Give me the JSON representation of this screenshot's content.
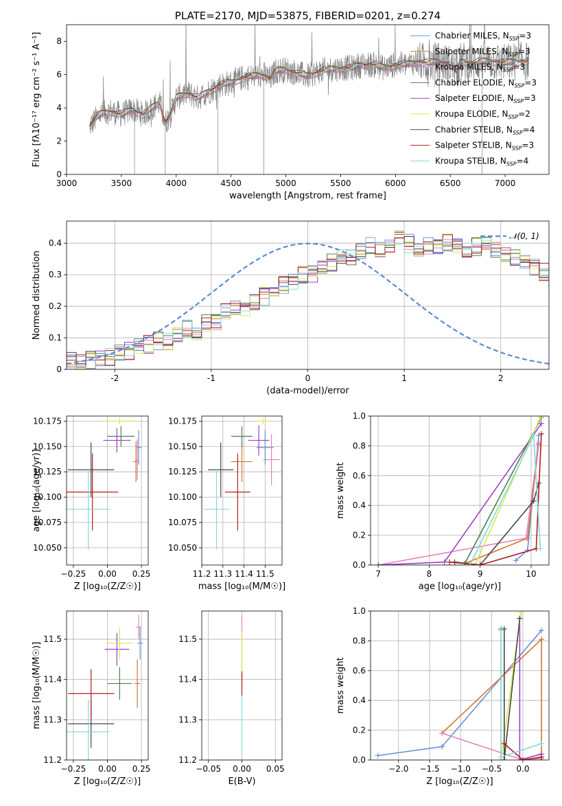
{
  "colors": {
    "chabrier_miles": "#6a8fd6",
    "salpeter_miles": "#d4752a",
    "kroupa_miles": "#e382c0",
    "chabrier_elodie": "#4e7e4e",
    "salpeter_elodie": "#9e3fc2",
    "kroupa_elodie": "#d6e84c",
    "chabrier_stelib": "#444444",
    "salpeter_stelib": "#b01c1c",
    "kroupa_stelib": "#82d8dc",
    "spectrum_data": "#808080",
    "normal_curve": "#5b8ad0"
  },
  "chart_data": [
    {
      "id": "spectrum",
      "type": "line",
      "title": "PLATE=2170, MJD=53875, FIBERID=0201, z=0.274",
      "xlabel": "wavelength [Angstrom, rest frame]",
      "ylabel": "Flux [fλ10⁻¹⁷ erg cm⁻² s⁻¹ A⁻¹]",
      "xlim": [
        3000,
        7400
      ],
      "ylim": [
        0,
        9
      ],
      "xticks": [
        3000,
        3500,
        4000,
        4500,
        5000,
        5500,
        6000,
        6500,
        7000
      ],
      "yticks": [
        0,
        2,
        4,
        6,
        8
      ],
      "legend_position": "top-right",
      "legend": [
        {
          "name": "Chabrier MILES, N_SSP=3",
          "label": "Chabrier MILES, N",
          "sub": "SSP",
          "suffix": "=3",
          "color_key": "chabrier_miles"
        },
        {
          "name": "Salpeter MILES, N_SSP=3",
          "label": "Salpeter MILES, N",
          "sub": "SSP",
          "suffix": "=3",
          "color_key": "salpeter_miles"
        },
        {
          "name": "Kroupa MILES, N_SSP=3",
          "label": "Kroupa MILES, N",
          "sub": "SSP",
          "suffix": "=3",
          "color_key": "kroupa_miles"
        },
        {
          "name": "Chabrier ELODIE, N_SSP=3",
          "label": "Chabrier ELODIE, N",
          "sub": "SSP",
          "suffix": "=3",
          "color_key": "chabrier_elodie"
        },
        {
          "name": "Salpeter ELODIE, N_SSP=3",
          "label": "Salpeter ELODIE, N",
          "sub": "SSP",
          "suffix": "=3",
          "color_key": "salpeter_elodie"
        },
        {
          "name": "Kroupa ELODIE, N_SSP=2",
          "label": "Kroupa ELODIE, N",
          "sub": "SSP",
          "suffix": "=2",
          "color_key": "kroupa_elodie"
        },
        {
          "name": "Chabrier STELIB, N_SSP=4",
          "label": "Chabrier STELIB, N",
          "sub": "SSP",
          "suffix": "=4",
          "color_key": "chabrier_stelib"
        },
        {
          "name": "Salpeter STELIB, N_SSP=3",
          "label": "Salpeter STELIB, N",
          "sub": "SSP",
          "suffix": "=3",
          "color_key": "salpeter_stelib"
        },
        {
          "name": "Kroupa STELIB, N_SSP=4",
          "label": "Kroupa STELIB, N",
          "sub": "SSP",
          "suffix": "=4",
          "color_key": "kroupa_stelib"
        }
      ],
      "continuum": [
        [
          3210,
          2.9
        ],
        [
          3300,
          3.6
        ],
        [
          3400,
          3.8
        ],
        [
          3500,
          3.6
        ],
        [
          3600,
          3.9
        ],
        [
          3700,
          3.6
        ],
        [
          3800,
          4.1
        ],
        [
          3850,
          4.3
        ],
        [
          3900,
          3.1
        ],
        [
          3950,
          3.6
        ],
        [
          4000,
          4.6
        ],
        [
          4100,
          4.9
        ],
        [
          4200,
          4.6
        ],
        [
          4300,
          5.0
        ],
        [
          4400,
          5.4
        ],
        [
          4500,
          5.5
        ],
        [
          4600,
          5.8
        ],
        [
          4700,
          5.9
        ],
        [
          4800,
          6.0
        ],
        [
          4860,
          5.7
        ],
        [
          4900,
          6.2
        ],
        [
          5000,
          6.3
        ],
        [
          5100,
          6.1
        ],
        [
          5200,
          5.9
        ],
        [
          5300,
          6.2
        ],
        [
          5400,
          6.3
        ],
        [
          5500,
          6.4
        ],
        [
          5600,
          6.4
        ],
        [
          5700,
          6.6
        ],
        [
          5800,
          6.6
        ],
        [
          5900,
          6.4
        ],
        [
          6000,
          6.6
        ],
        [
          6100,
          6.6
        ],
        [
          6200,
          6.8
        ],
        [
          6300,
          6.7
        ],
        [
          6400,
          6.8
        ],
        [
          6500,
          6.6
        ],
        [
          6560,
          6.2
        ],
        [
          6600,
          6.8
        ],
        [
          6700,
          6.7
        ],
        [
          6800,
          6.8
        ],
        [
          6900,
          6.8
        ],
        [
          7000,
          6.7
        ],
        [
          7100,
          6.8
        ],
        [
          7220,
          6.8
        ]
      ]
    },
    {
      "id": "residuals",
      "type": "histogram",
      "xlabel": "(data-model)/error",
      "ylabel": "Normed distribution",
      "xlim": [
        -2.5,
        2.5
      ],
      "ylim": [
        0,
        0.47
      ],
      "xticks": [
        -2,
        -1,
        0,
        1,
        2
      ],
      "yticks": [
        0.0,
        0.1,
        0.2,
        0.3,
        0.4
      ],
      "legend_position": "top-right",
      "curve_legend": "𝒩(0, 1)",
      "bin_width": 0.1,
      "bin_start": -2.5,
      "hist_values": [
        0.03,
        0.02,
        0.03,
        0.04,
        0.04,
        0.05,
        0.06,
        0.07,
        0.08,
        0.09,
        0.09,
        0.11,
        0.13,
        0.12,
        0.15,
        0.15,
        0.18,
        0.2,
        0.19,
        0.21,
        0.23,
        0.25,
        0.27,
        0.28,
        0.3,
        0.3,
        0.32,
        0.34,
        0.35,
        0.35,
        0.38,
        0.39,
        0.38,
        0.4,
        0.41,
        0.4,
        0.38,
        0.39,
        0.39,
        0.4,
        0.39,
        0.38,
        0.39,
        0.4,
        0.38,
        0.36,
        0.35,
        0.34,
        0.32,
        0.31,
        0.28,
        0.27,
        0.24,
        0.22,
        0.22,
        0.2,
        0.18,
        0.16,
        0.15,
        0.13,
        0.12,
        0.1,
        0.09,
        0.08,
        0.07,
        0.06,
        0.06,
        0.05,
        0.04,
        0.04
      ]
    },
    {
      "id": "z-vs-age",
      "type": "errorbar",
      "xlabel": "Z [log₁₀(Z/Z☉)]",
      "ylabel": "age  [log₁₀(age/yr)]",
      "xlim": [
        -0.3,
        0.3
      ],
      "ylim": [
        10.033,
        10.18
      ],
      "xticks": [
        -0.25,
        0.0,
        0.25
      ],
      "xticklabels": [
        "−0.25",
        "0.00",
        "0.25"
      ],
      "yticks": [
        10.05,
        10.075,
        10.1,
        10.125,
        10.15,
        10.175
      ],
      "yticklabels": [
        "10.050",
        "10.075",
        "10.100",
        "10.125",
        "10.150",
        "10.175"
      ],
      "points": [
        {
          "k": "chabrier_miles",
          "x": 0.23,
          "xe": 0.02,
          "y": 10.149,
          "ye": 0.017
        },
        {
          "k": "salpeter_miles",
          "x": 0.21,
          "xe": 0.02,
          "y": 10.135,
          "ye": 0.02
        },
        {
          "k": "kroupa_miles",
          "x": 0.22,
          "xe": 0.015,
          "y": 10.137,
          "ye": 0.02
        },
        {
          "k": "chabrier_elodie",
          "x": 0.1,
          "xe": 0.1,
          "y": 10.16,
          "ye": 0.01
        },
        {
          "k": "salpeter_elodie",
          "x": 0.07,
          "xe": 0.1,
          "y": 10.156,
          "ye": 0.012
        },
        {
          "k": "kroupa_elodie",
          "x": 0.09,
          "xe": 0.12,
          "y": 10.175,
          "ye": 0.003
        },
        {
          "k": "chabrier_stelib",
          "x": -0.12,
          "xe": 0.17,
          "y": 10.127,
          "ye": 0.027
        },
        {
          "k": "salpeter_stelib",
          "x": -0.11,
          "xe": 0.19,
          "y": 10.105,
          "ye": 0.038
        },
        {
          "k": "kroupa_stelib",
          "x": -0.14,
          "xe": 0.16,
          "y": 10.088,
          "ye": 0.04
        }
      ]
    },
    {
      "id": "mass-vs-age",
      "type": "errorbar",
      "xlabel": "mass [log₁₀(M/M☉)]",
      "ylabel": "",
      "xlim": [
        11.2,
        11.58
      ],
      "ylim": [
        10.033,
        10.18
      ],
      "xticks": [
        11.2,
        11.3,
        11.4,
        11.5
      ],
      "xticklabels": [
        "11.2",
        "11.3",
        "11.4",
        "11.5"
      ],
      "yticks": [
        10.05,
        10.075,
        10.1,
        10.125,
        10.15,
        10.175
      ],
      "yticklabels": [
        "10.050",
        "10.075",
        "10.100",
        "10.125",
        "10.150",
        "10.175"
      ],
      "points": [
        {
          "k": "chabrier_miles",
          "x": 11.5,
          "xe": 0.04,
          "y": 10.149,
          "ye": 0.017
        },
        {
          "k": "salpeter_miles",
          "x": 11.39,
          "xe": 0.05,
          "y": 10.135,
          "ye": 0.02
        },
        {
          "k": "kroupa_miles",
          "x": 11.53,
          "xe": 0.04,
          "y": 10.137,
          "ye": 0.025
        },
        {
          "k": "chabrier_elodie",
          "x": 11.39,
          "xe": 0.05,
          "y": 10.16,
          "ye": 0.01
        },
        {
          "k": "salpeter_elodie",
          "x": 11.47,
          "xe": 0.05,
          "y": 10.156,
          "ye": 0.015
        },
        {
          "k": "kroupa_elodie",
          "x": 11.49,
          "xe": 0.04,
          "y": 10.175,
          "ye": 0.003
        },
        {
          "k": "chabrier_stelib",
          "x": 11.29,
          "xe": 0.06,
          "y": 10.127,
          "ye": 0.027
        },
        {
          "k": "salpeter_stelib",
          "x": 11.37,
          "xe": 0.06,
          "y": 10.105,
          "ye": 0.038
        },
        {
          "k": "kroupa_stelib",
          "x": 11.27,
          "xe": 0.06,
          "y": 10.088,
          "ye": 0.04
        }
      ]
    },
    {
      "id": "age-mass-weight",
      "type": "line",
      "xlabel": "age  [log₁₀(age/yr)]",
      "ylabel": "mass weight",
      "xlim": [
        6.85,
        10.35
      ],
      "ylim": [
        0,
        1
      ],
      "xticks": [
        7,
        8,
        9,
        10
      ],
      "yticks": [
        0.0,
        0.2,
        0.4,
        0.6,
        0.8,
        1.0
      ],
      "yticklabels": [
        "0.0",
        "0.2",
        "0.4",
        "0.6",
        "0.8",
        "1.0"
      ],
      "series": [
        {
          "k": "chabrier_miles",
          "points": [
            [
              9.7,
              0.03
            ],
            [
              9.93,
              0.1
            ],
            [
              10.15,
              0.87
            ]
          ]
        },
        {
          "k": "salpeter_miles",
          "points": [
            [
              8.7,
              0.01
            ],
            [
              9.93,
              0.18
            ],
            [
              10.15,
              0.81
            ]
          ]
        },
        {
          "k": "kroupa_miles",
          "points": [
            [
              7.0,
              0.0
            ],
            [
              9.9,
              0.18
            ],
            [
              10.15,
              0.82
            ]
          ]
        },
        {
          "k": "chabrier_elodie",
          "points": [
            [
              8.7,
              0.01
            ],
            [
              10.2,
              0.99
            ]
          ]
        },
        {
          "k": "salpeter_elodie",
          "points": [
            [
              7.0,
              0.0
            ],
            [
              8.3,
              0.02
            ],
            [
              10.2,
              0.95
            ]
          ]
        },
        {
          "k": "kroupa_elodie",
          "points": [
            [
              8.9,
              0.0
            ],
            [
              10.18,
              0.99
            ]
          ]
        },
        {
          "k": "chabrier_stelib",
          "points": [
            [
              8.5,
              0.02
            ],
            [
              9.0,
              0.0
            ],
            [
              10.05,
              0.43
            ],
            [
              10.15,
              0.55
            ]
          ]
        },
        {
          "k": "salpeter_stelib",
          "points": [
            [
              8.4,
              0.02
            ],
            [
              9.0,
              0.0
            ],
            [
              10.1,
              0.11
            ],
            [
              10.2,
              0.88
            ]
          ]
        },
        {
          "k": "kroupa_stelib",
          "points": [
            [
              8.8,
              0.0
            ],
            [
              10.05,
              0.87
            ],
            [
              10.18,
              0.11
            ]
          ]
        }
      ]
    },
    {
      "id": "z-vs-mass",
      "type": "errorbar",
      "xlabel": "Z [log₁₀(Z/Z☉)]",
      "ylabel": "mass [log₁₀(M/M☉)]",
      "xlim": [
        -0.3,
        0.3
      ],
      "ylim": [
        11.2,
        11.57
      ],
      "xticks": [
        -0.25,
        0.0,
        0.25
      ],
      "xticklabels": [
        "−0.25",
        "0.00",
        "0.25"
      ],
      "yticks": [
        11.2,
        11.3,
        11.4,
        11.5
      ],
      "yticklabels": [
        "11.2",
        "11.3",
        "11.4",
        "11.5"
      ],
      "points": [
        {
          "k": "chabrier_miles",
          "x": 0.24,
          "xe": 0.02,
          "y": 11.49,
          "ye": 0.04
        },
        {
          "k": "salpeter_miles",
          "x": 0.22,
          "xe": 0.02,
          "y": 11.39,
          "ye": 0.06
        },
        {
          "k": "kroupa_miles",
          "x": 0.23,
          "xe": 0.02,
          "y": 11.53,
          "ye": 0.03
        },
        {
          "k": "chabrier_elodie",
          "x": 0.09,
          "xe": 0.09,
          "y": 11.39,
          "ye": 0.04
        },
        {
          "k": "salpeter_elodie",
          "x": 0.07,
          "xe": 0.09,
          "y": 11.475,
          "ye": 0.04
        },
        {
          "k": "kroupa_elodie",
          "x": 0.09,
          "xe": 0.1,
          "y": 11.49,
          "ye": 0.04
        },
        {
          "k": "chabrier_stelib",
          "x": -0.12,
          "xe": 0.17,
          "y": 11.29,
          "ye": 0.06
        },
        {
          "k": "salpeter_stelib",
          "x": -0.12,
          "xe": 0.17,
          "y": 11.365,
          "ye": 0.06
        },
        {
          "k": "kroupa_stelib",
          "x": -0.14,
          "xe": 0.16,
          "y": 11.27,
          "ye": 0.08
        }
      ]
    },
    {
      "id": "ebv-vs-mass",
      "type": "errorbar",
      "xlabel": "E(B-V)",
      "ylabel": "",
      "xlim": [
        -0.06,
        0.06
      ],
      "ylim": [
        11.2,
        11.57
      ],
      "xticks": [
        -0.05,
        0.0,
        0.05
      ],
      "xticklabels": [
        "−0.05",
        "0.00",
        "0.05"
      ],
      "yticks": [
        11.2,
        11.3,
        11.4,
        11.5
      ],
      "yticklabels": [
        "11.2",
        "11.3",
        "11.4",
        "11.5"
      ],
      "points": [
        {
          "k": "kroupa_miles",
          "x": 0.0,
          "xe": 0.0,
          "y": 11.48,
          "ye": 0.08
        },
        {
          "k": "kroupa_elodie",
          "x": 0.0,
          "xe": 0.0,
          "y": 11.45,
          "ye": 0.07
        },
        {
          "k": "salpeter_stelib",
          "x": 0.0,
          "xe": 0.0,
          "y": 11.39,
          "ye": 0.03
        },
        {
          "k": "kroupa_stelib",
          "x": 0.0,
          "xe": 0.0,
          "y": 11.29,
          "ye": 0.07
        }
      ]
    },
    {
      "id": "z-mass-weight",
      "type": "line",
      "xlabel": "Z [log₁₀(Z/Z☉)]",
      "ylabel": "mass weight",
      "xlim": [
        -2.45,
        0.42
      ],
      "ylim": [
        0,
        1
      ],
      "xticks": [
        -2.0,
        -1.5,
        -1.0,
        -0.5,
        0.0
      ],
      "xticklabels": [
        "−2.0",
        "−1.5",
        "−1.0",
        "−0.5",
        "0.0"
      ],
      "yticks": [
        0.0,
        0.2,
        0.4,
        0.6,
        0.8,
        1.0
      ],
      "yticklabels": [
        "0.0",
        "0.2",
        "0.4",
        "0.6",
        "0.8",
        "1.0"
      ],
      "series": [
        {
          "k": "chabrier_miles",
          "points": [
            [
              -2.33,
              0.03
            ],
            [
              -1.3,
              0.09
            ],
            [
              0.3,
              0.87
            ]
          ]
        },
        {
          "k": "salpeter_miles",
          "points": [
            [
              -1.3,
              0.18
            ],
            [
              0.3,
              0.81
            ],
            [
              0.3,
              0.0
            ]
          ]
        },
        {
          "k": "kroupa_miles",
          "points": [
            [
              -1.3,
              0.18
            ],
            [
              0.0,
              0.0
            ],
            [
              0.3,
              0.01
            ]
          ]
        },
        {
          "k": "chabrier_elodie",
          "points": [
            [
              -0.35,
              0.88
            ],
            [
              -0.35,
              0.0
            ]
          ]
        },
        {
          "k": "salpeter_elodie",
          "points": [
            [
              -0.05,
              0.95
            ],
            [
              -0.05,
              0.0
            ],
            [
              0.3,
              0.04
            ]
          ]
        },
        {
          "k": "kroupa_elodie",
          "points": [
            [
              -0.35,
              0.0
            ],
            [
              -0.03,
              0.99
            ]
          ]
        },
        {
          "k": "chabrier_stelib",
          "points": [
            [
              -0.3,
              0.88
            ],
            [
              -0.3,
              0.0
            ],
            [
              -0.05,
              0.95
            ]
          ]
        },
        {
          "k": "salpeter_stelib",
          "points": [
            [
              -0.3,
              0.11
            ],
            [
              0.0,
              0.0
            ],
            [
              0.3,
              0.02
            ]
          ]
        },
        {
          "k": "kroupa_stelib",
          "points": [
            [
              -0.35,
              0.87
            ],
            [
              -0.35,
              0.02
            ],
            [
              0.3,
              0.11
            ]
          ]
        }
      ]
    }
  ]
}
